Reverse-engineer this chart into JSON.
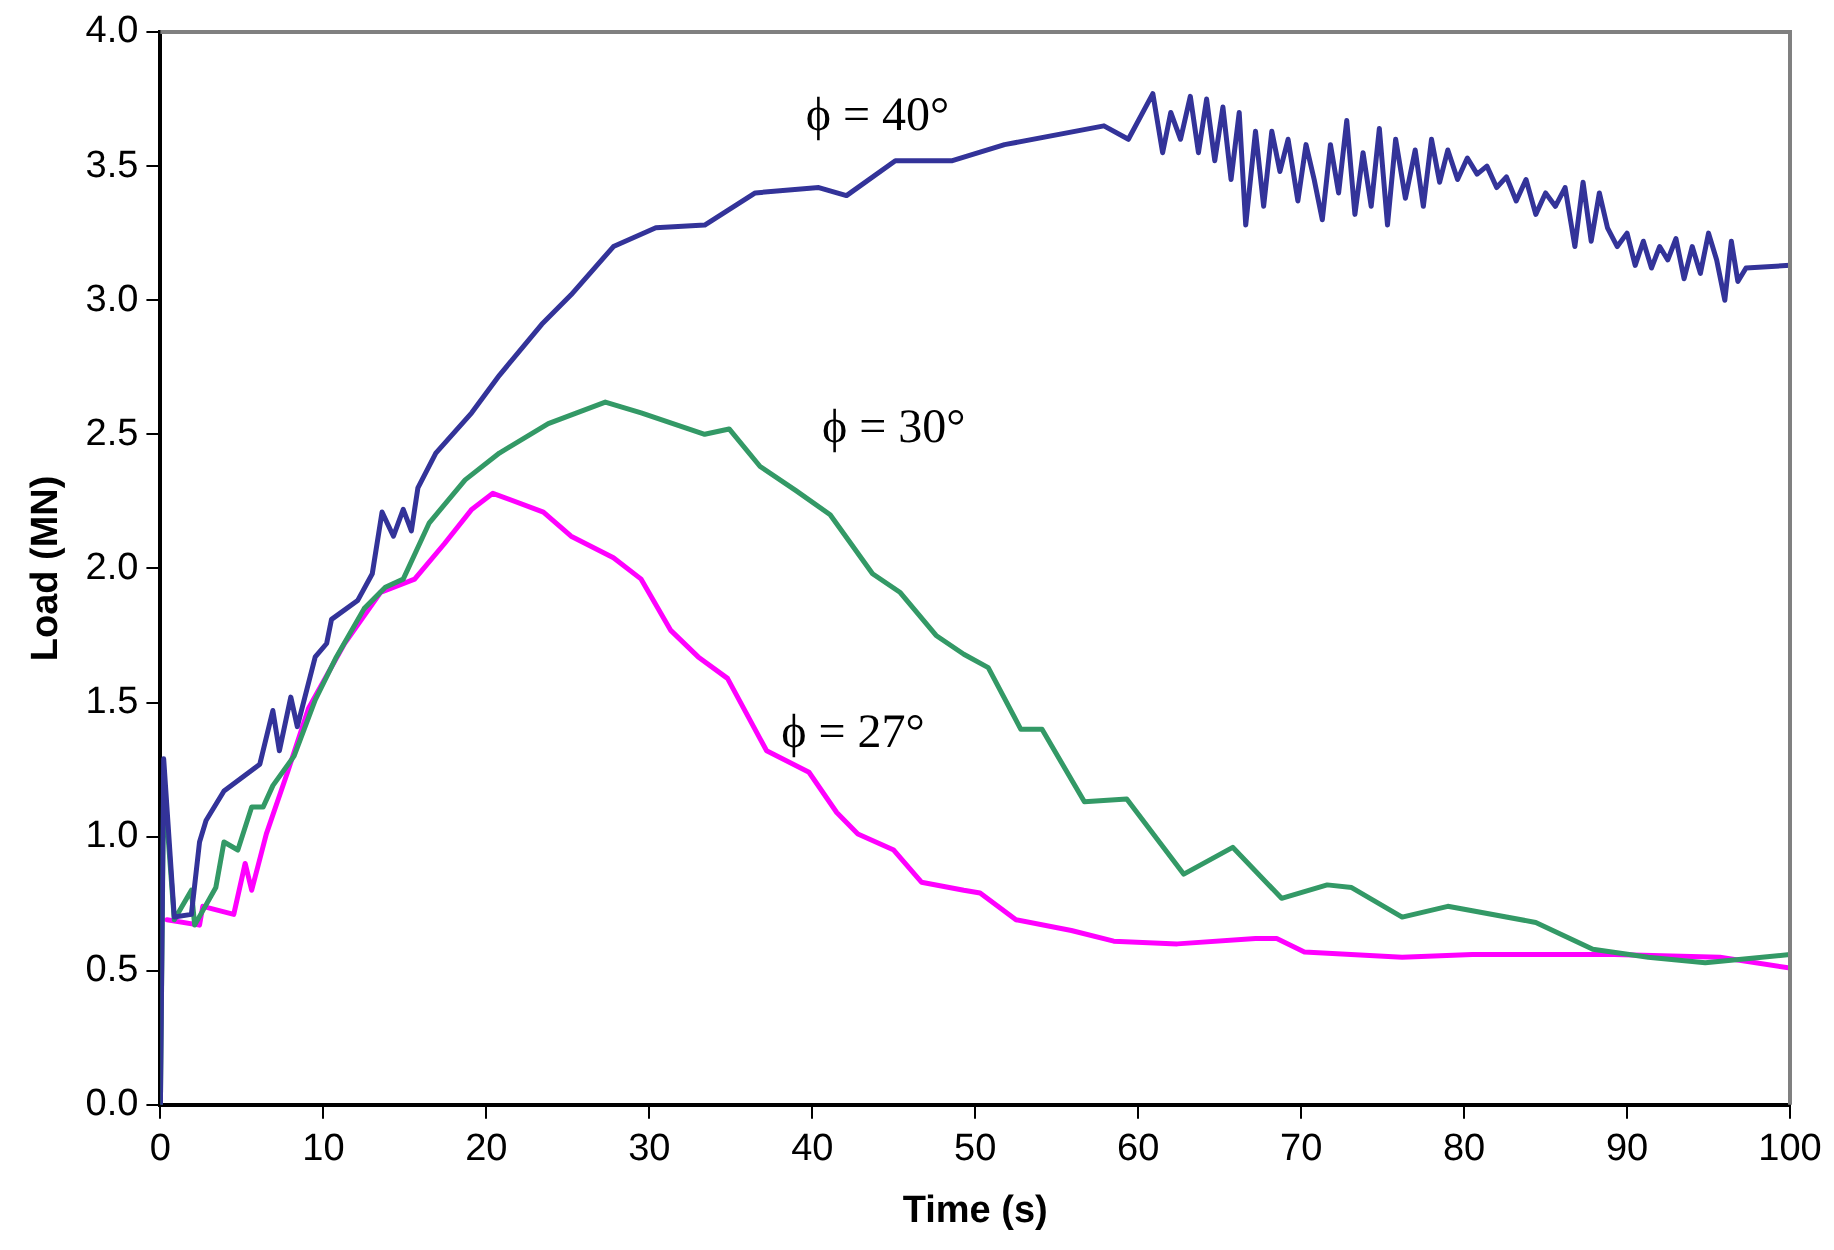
{
  "chart_data": {
    "type": "line",
    "xlabel": "Time (s)",
    "ylabel": "Load (MN)",
    "xlim": [
      0,
      100
    ],
    "xticks": [
      0,
      10,
      20,
      30,
      40,
      50,
      60,
      70,
      80,
      90,
      100
    ],
    "ylim": [
      0,
      4
    ],
    "yticks": [
      {
        "value": 0,
        "label": "0.0"
      },
      {
        "value": 0.5,
        "label": "0.5"
      },
      {
        "value": 1,
        "label": "1.0"
      },
      {
        "value": 1.5,
        "label": "1.5"
      },
      {
        "value": 2,
        "label": "2.0"
      },
      {
        "value": 2.5,
        "label": "2.5"
      },
      {
        "value": 3,
        "label": "3.0"
      },
      {
        "value": 3.5,
        "label": "3.5"
      },
      {
        "value": 4,
        "label": "4.0"
      }
    ],
    "grid": false,
    "legend": false,
    "marker": "none",
    "line_style": "solid",
    "series": [
      {
        "name": "ϕ = 40°",
        "color": "#333399",
        "x": [
          0,
          0.2,
          0.85,
          1.9,
          2.4,
          2.8,
          3.9,
          6.1,
          6.9,
          7.3,
          8.0,
          8.4,
          9.5,
          10.2,
          10.5,
          12.1,
          13.0,
          13.6,
          14.3,
          14.9,
          15.4,
          15.8,
          16.9,
          19.1,
          20.8,
          23.4,
          25.2,
          27.8,
          30.4,
          33.4,
          36.5,
          40.4,
          42.1,
          45.1,
          48.6,
          51.8,
          57.9,
          59.4,
          60.9,
          61.5,
          62,
          62.6,
          63.2,
          63.7,
          64.2,
          64.7,
          65.2,
          65.7,
          66.2,
          66.6,
          67.2,
          67.7,
          68.2,
          68.7,
          69.2,
          69.8,
          70.3,
          70.8,
          71.3,
          71.8,
          72.3,
          72.8,
          73.3,
          73.8,
          74.3,
          74.8,
          75.3,
          75.8,
          76.4,
          77,
          77.5,
          78,
          78.5,
          79,
          79.6,
          80.2,
          80.8,
          81.4,
          82,
          82.6,
          83.2,
          83.8,
          84.4,
          85,
          85.6,
          86.2,
          86.8,
          87.3,
          87.8,
          88.3,
          88.8,
          89.4,
          90,
          90.5,
          91,
          91.5,
          92,
          92.5,
          93,
          93.5,
          94,
          94.5,
          95,
          95.5,
          96,
          96.4,
          96.8,
          97.3,
          100
        ],
        "values": [
          0,
          1.29,
          0.7,
          0.71,
          0.98,
          1.06,
          1.17,
          1.27,
          1.47,
          1.32,
          1.52,
          1.41,
          1.67,
          1.72,
          1.81,
          1.88,
          1.98,
          2.21,
          2.12,
          2.22,
          2.14,
          2.3,
          2.43,
          2.58,
          2.72,
          2.91,
          3.02,
          3.2,
          3.27,
          3.28,
          3.4,
          3.42,
          3.39,
          3.52,
          3.52,
          3.58,
          3.65,
          3.6,
          3.77,
          3.55,
          3.7,
          3.6,
          3.76,
          3.55,
          3.75,
          3.52,
          3.72,
          3.45,
          3.7,
          3.28,
          3.63,
          3.35,
          3.63,
          3.48,
          3.6,
          3.37,
          3.58,
          3.45,
          3.3,
          3.58,
          3.4,
          3.67,
          3.32,
          3.55,
          3.35,
          3.64,
          3.28,
          3.6,
          3.38,
          3.56,
          3.35,
          3.6,
          3.44,
          3.56,
          3.45,
          3.53,
          3.47,
          3.5,
          3.42,
          3.46,
          3.37,
          3.45,
          3.32,
          3.4,
          3.35,
          3.42,
          3.2,
          3.44,
          3.22,
          3.4,
          3.27,
          3.2,
          3.25,
          3.13,
          3.22,
          3.12,
          3.2,
          3.15,
          3.23,
          3.08,
          3.2,
          3.1,
          3.25,
          3.15,
          3.0,
          3.22,
          3.07,
          3.12,
          3.13
        ]
      },
      {
        "name": "ϕ = 30°",
        "color": "#339966",
        "x": [
          0,
          0.2,
          0.85,
          1.9,
          2.1,
          3.4,
          3.9,
          4.75,
          5.6,
          6.3,
          6.9,
          8.2,
          9.5,
          10.8,
          12.5,
          13.8,
          14.9,
          16.5,
          18.7,
          20.8,
          23.8,
          27.3,
          29.5,
          33.4,
          34.9,
          36.8,
          39,
          41.1,
          43.7,
          45.4,
          47.6,
          49.3,
          50.8,
          52.8,
          54.1,
          56.7,
          59.3,
          62.8,
          65.8,
          68.8,
          71.6,
          73.1,
          76.2,
          79,
          84.4,
          87.9,
          91.3,
          94.8,
          100
        ],
        "values": [
          0,
          1.22,
          0.69,
          0.8,
          0.67,
          0.81,
          0.98,
          0.95,
          1.11,
          1.11,
          1.19,
          1.3,
          1.51,
          1.67,
          1.85,
          1.93,
          1.96,
          2.17,
          2.33,
          2.43,
          2.54,
          2.62,
          2.58,
          2.5,
          2.52,
          2.38,
          2.29,
          2.2,
          1.98,
          1.91,
          1.75,
          1.68,
          1.63,
          1.4,
          1.4,
          1.13,
          1.14,
          0.86,
          0.96,
          0.77,
          0.82,
          0.81,
          0.7,
          0.74,
          0.68,
          0.58,
          0.55,
          0.53,
          0.56
        ]
      },
      {
        "name": "ϕ = 27°",
        "color": "#ff00ff",
        "x": [
          0.4,
          2.4,
          2.6,
          4.5,
          5.2,
          5.6,
          6.5,
          7.8,
          9.1,
          11.3,
          13.5,
          15.6,
          17.4,
          19.1,
          20.4,
          23.5,
          25.2,
          27.8,
          29.5,
          31.3,
          33,
          34.8,
          37.2,
          39.8,
          41.5,
          42.8,
          45,
          46.7,
          49.3,
          50.3,
          52.5,
          55.9,
          58.5,
          62.4,
          67.2,
          68.5,
          70.2,
          76.2,
          80.5,
          89.2,
          95.7,
          100
        ],
        "values": [
          0.69,
          0.67,
          0.74,
          0.71,
          0.9,
          0.8,
          1.01,
          1.24,
          1.48,
          1.72,
          1.91,
          1.96,
          2.09,
          2.22,
          2.28,
          2.21,
          2.12,
          2.04,
          1.96,
          1.77,
          1.67,
          1.59,
          1.32,
          1.24,
          1.09,
          1.01,
          0.95,
          0.83,
          0.8,
          0.79,
          0.69,
          0.65,
          0.61,
          0.6,
          0.62,
          0.62,
          0.57,
          0.55,
          0.56,
          0.56,
          0.55,
          0.51
        ]
      }
    ]
  }
}
